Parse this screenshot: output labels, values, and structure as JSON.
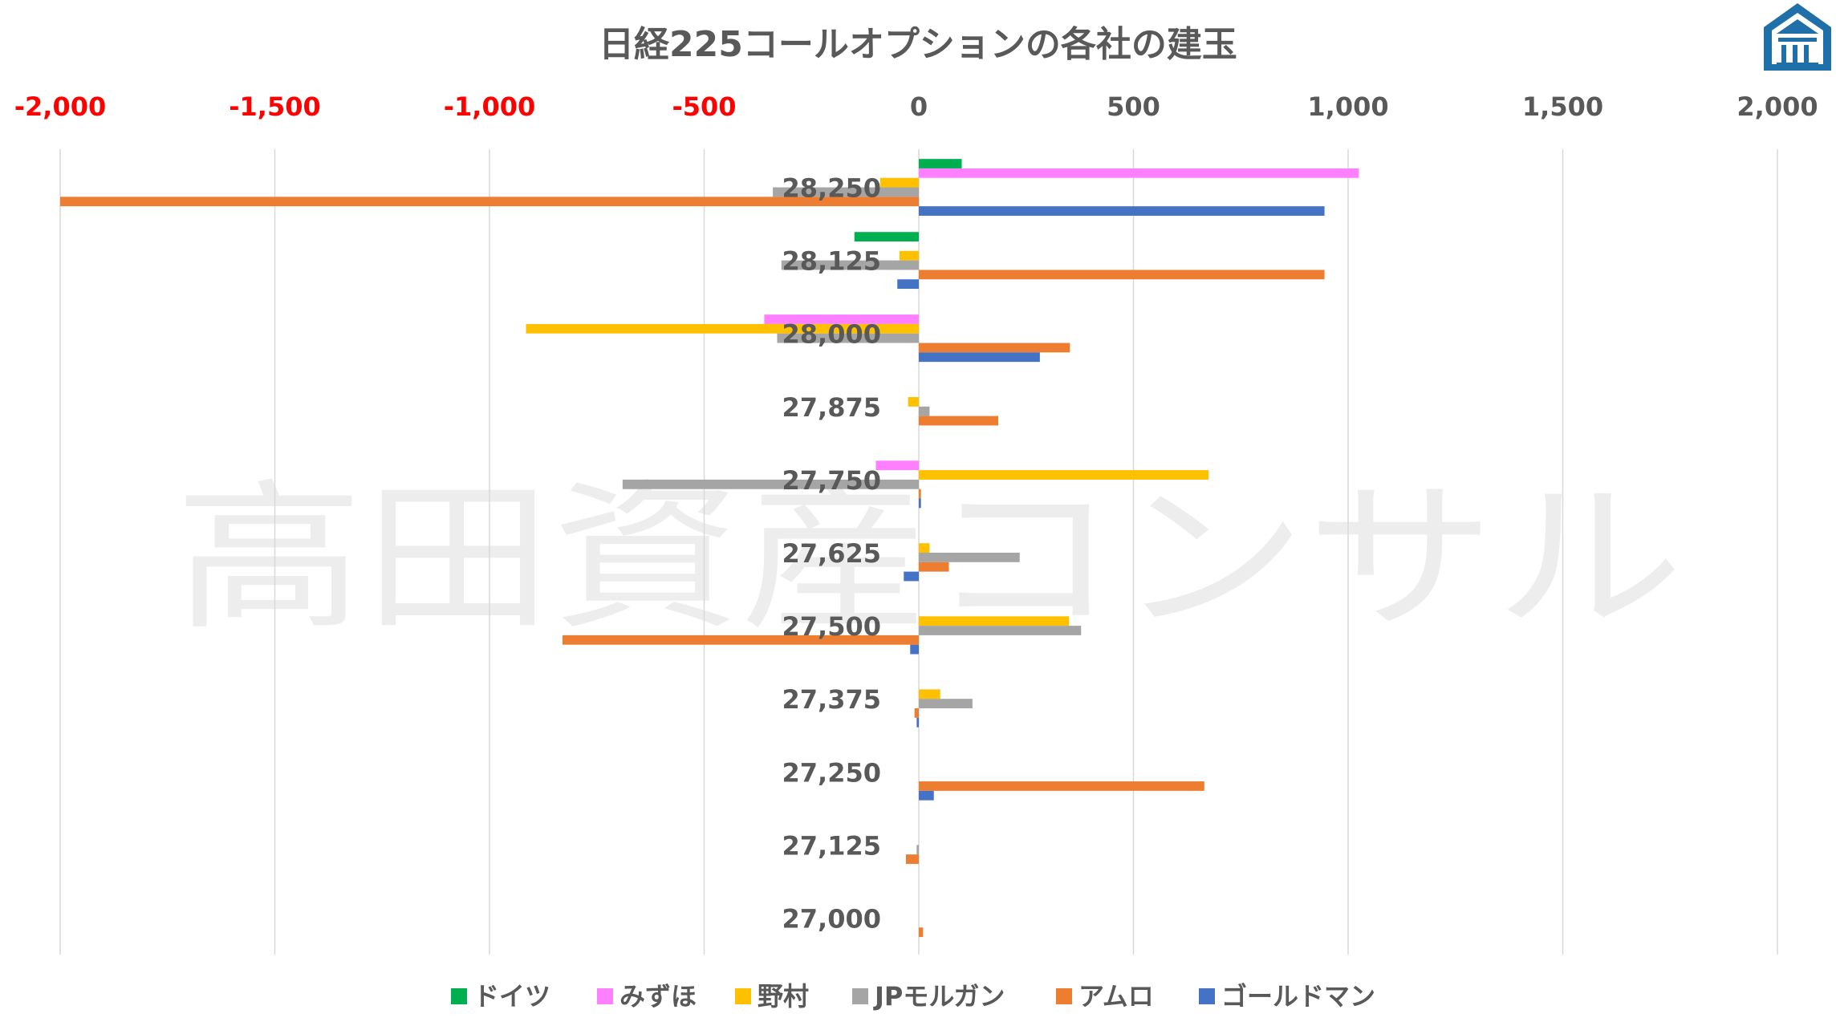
{
  "chart_data": {
    "type": "bar",
    "orientation": "horizontal",
    "title": "日経225コールオプションの各社の建玉",
    "watermark": "高田資産コンサル",
    "logo_icon": "building-logo-icon",
    "xlim": [
      -2000,
      2000
    ],
    "x_ticks": [
      -2000,
      -1500,
      -1000,
      -500,
      0,
      500,
      1000,
      1500,
      2000
    ],
    "x_tick_labels": [
      "-2,000",
      "-1,500",
      "-1,000",
      "-500",
      "0",
      "500",
      "1,000",
      "1,500",
      "2,000"
    ],
    "negative_tick_color": "#ff0000",
    "positive_tick_color": "#595959",
    "grid": "vertical",
    "legend_position": "bottom",
    "categories": [
      "28,250",
      "28,125",
      "28,000",
      "27,875",
      "27,750",
      "27,625",
      "27,500",
      "27,375",
      "27,250",
      "27,125",
      "27,000"
    ],
    "series": [
      {
        "name": "ドイツ",
        "color": "#00b050",
        "values": [
          100,
          -150,
          0,
          0,
          0,
          0,
          0,
          0,
          0,
          0,
          0
        ]
      },
      {
        "name": "みずほ",
        "color": "#ff80ff",
        "values": [
          1025,
          0,
          -360,
          0,
          -100,
          0,
          0,
          0,
          0,
          0,
          0
        ]
      },
      {
        "name": "野村",
        "color": "#ffc000",
        "values": [
          -90,
          -45,
          -915,
          -25,
          675,
          25,
          350,
          50,
          0,
          0,
          0
        ]
      },
      {
        "name": "JPモルガン",
        "color": "#a5a5a5",
        "values": [
          -340,
          -320,
          -330,
          25,
          -690,
          235,
          378,
          125,
          0,
          -5,
          0
        ]
      },
      {
        "name": "アムロ",
        "color": "#ed7d31",
        "values": [
          -2000,
          945,
          352,
          185,
          5,
          70,
          -830,
          -10,
          665,
          -30,
          10
        ]
      },
      {
        "name": "ゴールドマン",
        "color": "#4472c4",
        "values": [
          945,
          -50,
          282,
          0,
          5,
          -35,
          -20,
          -5,
          35,
          0,
          0
        ]
      }
    ]
  }
}
